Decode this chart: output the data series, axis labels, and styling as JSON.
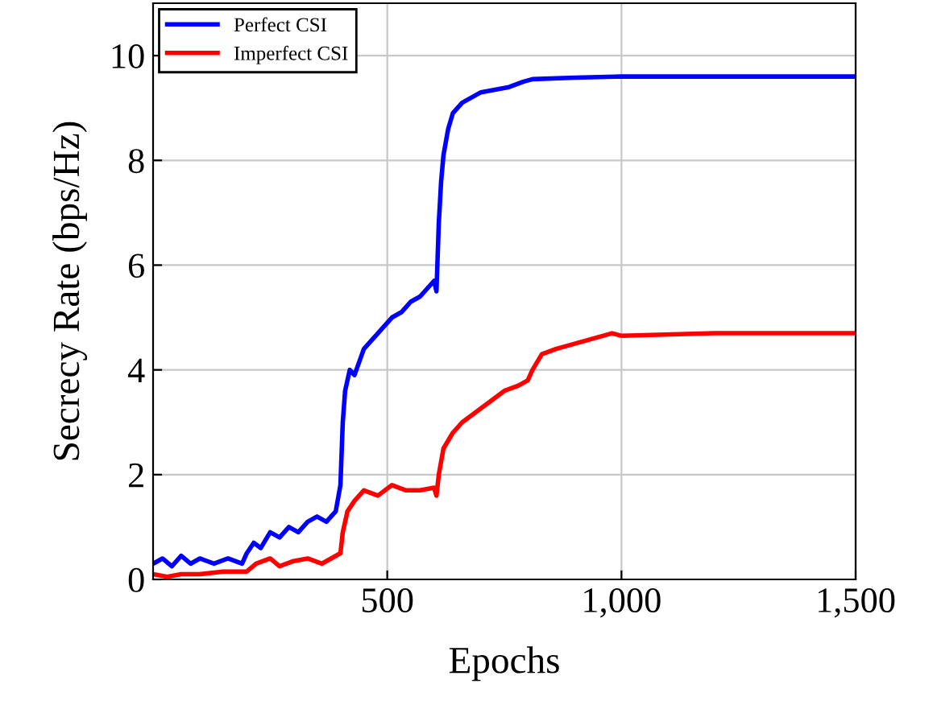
{
  "chart_data": {
    "type": "line",
    "xlabel": "Epochs",
    "ylabel": "Secrecy Rate (bps/Hz)",
    "xlim": [
      0,
      1500
    ],
    "ylim": [
      0,
      11
    ],
    "xticks": [
      {
        "value": 500,
        "label": "500"
      },
      {
        "value": 1000,
        "label": "1,000"
      },
      {
        "value": 1500,
        "label": "1,500"
      }
    ],
    "yticks": [
      0,
      2,
      4,
      6,
      8,
      10
    ],
    "grid": true,
    "legend": "top left",
    "marker": "none",
    "line_style": "solid",
    "series": [
      {
        "name": "Perfect CSI",
        "color": "#0000ff",
        "x": [
          0,
          20,
          40,
          60,
          80,
          100,
          130,
          160,
          190,
          200,
          215,
          230,
          250,
          270,
          290,
          310,
          330,
          350,
          370,
          390,
          400,
          405,
          410,
          420,
          430,
          450,
          470,
          490,
          510,
          530,
          550,
          570,
          590,
          600,
          605,
          610,
          615,
          620,
          630,
          640,
          660,
          680,
          700,
          730,
          760,
          790,
          810,
          900,
          1000,
          1200,
          1500
        ],
        "values": [
          0.3,
          0.4,
          0.25,
          0.45,
          0.3,
          0.4,
          0.3,
          0.4,
          0.3,
          0.5,
          0.7,
          0.6,
          0.9,
          0.8,
          1.0,
          0.9,
          1.1,
          1.2,
          1.1,
          1.3,
          1.8,
          3.0,
          3.6,
          4.0,
          3.9,
          4.4,
          4.6,
          4.8,
          5.0,
          5.1,
          5.3,
          5.4,
          5.6,
          5.7,
          5.5,
          6.8,
          7.6,
          8.1,
          8.6,
          8.9,
          9.1,
          9.2,
          9.3,
          9.35,
          9.4,
          9.5,
          9.55,
          9.58,
          9.6,
          9.6,
          9.6
        ]
      },
      {
        "name": "Imperfect CSI",
        "color": "#ff0000",
        "x": [
          0,
          30,
          60,
          100,
          150,
          200,
          220,
          250,
          270,
          300,
          330,
          360,
          390,
          400,
          405,
          415,
          430,
          450,
          480,
          510,
          540,
          570,
          600,
          605,
          610,
          620,
          640,
          660,
          690,
          720,
          750,
          780,
          800,
          810,
          830,
          860,
          900,
          940,
          980,
          1000,
          1200,
          1500
        ],
        "values": [
          0.1,
          0.05,
          0.1,
          0.1,
          0.15,
          0.15,
          0.3,
          0.4,
          0.25,
          0.35,
          0.4,
          0.3,
          0.45,
          0.5,
          0.9,
          1.3,
          1.5,
          1.7,
          1.6,
          1.8,
          1.7,
          1.7,
          1.75,
          1.6,
          2.0,
          2.5,
          2.8,
          3.0,
          3.2,
          3.4,
          3.6,
          3.7,
          3.8,
          4.0,
          4.3,
          4.4,
          4.5,
          4.6,
          4.7,
          4.65,
          4.7,
          4.7
        ]
      }
    ]
  }
}
